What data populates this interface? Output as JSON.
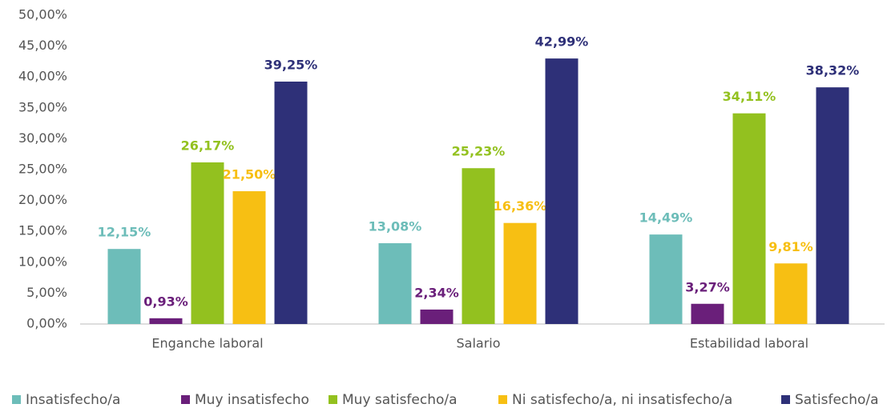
{
  "chart_data": {
    "type": "bar",
    "categories": [
      "Enganche laboral",
      "Salario",
      "Estabilidad laboral"
    ],
    "series": [
      {
        "name": "Insatisfecho/a",
        "color": "#6dbdb9",
        "values": [
          12.15,
          13.08,
          14.49
        ],
        "value_labels": [
          "12,15%",
          "13,08%",
          "14,49%"
        ]
      },
      {
        "name": "Muy insatisfecho",
        "color": "#6a1f7a",
        "values": [
          0.93,
          2.34,
          3.27
        ],
        "value_labels": [
          "0,93%",
          "2,34%",
          "3,27%"
        ]
      },
      {
        "name": "Muy satisfecho/a",
        "color": "#93c11f",
        "values": [
          26.17,
          25.23,
          34.11
        ],
        "value_labels": [
          "26,17%",
          "25,23%",
          "34,11%"
        ]
      },
      {
        "name": "Ni satisfecho/a, ni insatisfecho/a",
        "color": "#f7bf13",
        "values": [
          21.5,
          16.36,
          9.81
        ],
        "value_labels": [
          "21,50%",
          "16,36%",
          "9,81%"
        ]
      },
      {
        "name": "Satisfecho/a",
        "color": "#2e3078",
        "values": [
          39.25,
          42.99,
          38.32
        ],
        "value_labels": [
          "39,25%",
          "42,99%",
          "38,32%"
        ]
      }
    ],
    "ylim": [
      0,
      50
    ],
    "yticks": [
      {
        "value": 0,
        "label": "0,00%"
      },
      {
        "value": 5,
        "label": "5,00%"
      },
      {
        "value": 10,
        "label": "10,00%"
      },
      {
        "value": 15,
        "label": "15,00%"
      },
      {
        "value": 20,
        "label": "20,00%"
      },
      {
        "value": 25,
        "label": "25,00%"
      },
      {
        "value": 30,
        "label": "30,00%"
      },
      {
        "value": 35,
        "label": "35,00%"
      },
      {
        "value": 40,
        "label": "40,00%"
      },
      {
        "value": 45,
        "label": "45,00%"
      },
      {
        "value": 50,
        "label": "50,00%"
      }
    ],
    "grid": false,
    "legend": "bottom"
  }
}
